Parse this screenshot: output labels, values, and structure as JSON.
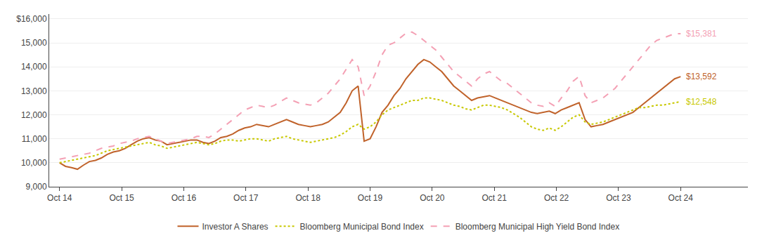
{
  "chart_data": {
    "type": "line",
    "x": [
      0,
      1.1538,
      2.3077,
      3.4615,
      4.6154,
      5.7692,
      6.9231,
      8.0769,
      9.2308,
      10.3846,
      11.5385,
      12.6923,
      13.8462,
      15,
      16.1538,
      17.3077,
      18.4615,
      19.6154,
      20.7692,
      21.9231,
      23.0769,
      24.2308,
      25.3846,
      26.5385,
      27.6923,
      28.8462,
      30,
      31.1538,
      32.3077,
      33.4615,
      34.6154,
      35.7692,
      36.9231,
      38.0769,
      39.2308,
      40.3846,
      41.5385,
      42.6923,
      43.8462,
      45,
      46.1538,
      47.3077,
      48.4615,
      49.6154,
      50.7692,
      51.9231,
      53.0769,
      54.2308,
      55.3846,
      56.5385,
      57.6923,
      58.8462,
      60,
      61.1538,
      62.3077,
      63.4615,
      64.6154,
      65.7692,
      66.9231,
      68.0769,
      69.2308,
      70.3846,
      71.5385,
      72.6923,
      73.8462,
      75,
      76.1538,
      77.3077,
      78.4615,
      79.6154,
      80.7692,
      81.9231,
      83.0769,
      84.2308,
      85.3846,
      86.5385,
      87.6923,
      88.8462,
      90,
      91.1538,
      92.3077,
      93.4615,
      94.6154,
      95.7692,
      96.9231,
      98.0769,
      99.2308,
      100.3846,
      101.5385,
      102.6923,
      103.8462,
      105,
      106.1538,
      107.3077,
      108.4615,
      109.6154,
      110.7692,
      111.9231,
      113.0769,
      114.2308,
      115.3846,
      116.5385,
      117.6923,
      118.8462,
      120
    ],
    "xlim": [
      -2,
      133
    ],
    "xticks": [
      {
        "value": 0,
        "label": "Oct 14"
      },
      {
        "value": 12,
        "label": "Oct 15"
      },
      {
        "value": 24,
        "label": "Oct 16"
      },
      {
        "value": 36,
        "label": "Oct 17"
      },
      {
        "value": 48,
        "label": "Oct 18"
      },
      {
        "value": 60,
        "label": "Oct 19"
      },
      {
        "value": 72,
        "label": "Oct 20"
      },
      {
        "value": 84,
        "label": "Oct 21"
      },
      {
        "value": 96,
        "label": "Oct 22"
      },
      {
        "value": 108,
        "label": "Oct 23"
      },
      {
        "value": 120,
        "label": "Oct 24"
      }
    ],
    "ylim": [
      9000,
      16200
    ],
    "yticks": [
      {
        "value": 9000,
        "label": "9,000"
      },
      {
        "value": 10000,
        "label": "10,000"
      },
      {
        "value": 11000,
        "label": "11,000"
      },
      {
        "value": 12000,
        "label": "12,000"
      },
      {
        "value": 13000,
        "label": "13,000"
      },
      {
        "value": 14000,
        "label": "14,000"
      },
      {
        "value": 15000,
        "label": "15,000"
      },
      {
        "value": 16000,
        "label": "$16,000"
      }
    ],
    "grid": "y",
    "legend": "bottom",
    "series": [
      {
        "name": "Investor A Shares",
        "color": "#C0622A",
        "line_style": "solid",
        "end_label": "$13,592",
        "values": [
          10000,
          9850,
          9800,
          9730,
          9900,
          10050,
          10100,
          10200,
          10350,
          10450,
          10500,
          10600,
          10750,
          10900,
          11000,
          11050,
          10950,
          10900,
          10750,
          10800,
          10850,
          10900,
          10950,
          10950,
          10850,
          10800,
          10900,
          11050,
          11100,
          11200,
          11350,
          11450,
          11500,
          11600,
          11550,
          11500,
          11600,
          11700,
          11800,
          11700,
          11600,
          11550,
          11500,
          11550,
          11600,
          11700,
          11900,
          12100,
          12500,
          13000,
          13200,
          10900,
          11000,
          11500,
          12100,
          12400,
          12800,
          13100,
          13500,
          13800,
          14100,
          14300,
          14200,
          14000,
          13800,
          13500,
          13200,
          13000,
          12800,
          12600,
          12700,
          12750,
          12800,
          12700,
          12600,
          12500,
          12400,
          12300,
          12200,
          12100,
          12050,
          12100,
          12150,
          12050,
          12200,
          12300,
          12400,
          12500,
          11800,
          11500,
          11550,
          11600,
          11700,
          11800,
          11900,
          12000,
          12100,
          12300,
          12500,
          12700,
          12900,
          13100,
          13300,
          13500,
          13592
        ]
      },
      {
        "name": "Bloomberg Municipal Bond Index",
        "color": "#C8C800",
        "line_style": "dotted",
        "end_label": "$12,548",
        "values": [
          10000,
          10050,
          10100,
          10150,
          10200,
          10250,
          10300,
          10400,
          10500,
          10550,
          10600,
          10650,
          10700,
          10750,
          10800,
          10850,
          10750,
          10700,
          10600,
          10650,
          10700,
          10750,
          10800,
          10850,
          10800,
          10750,
          10800,
          10900,
          10950,
          10950,
          10900,
          10950,
          11000,
          11000,
          10950,
          10900,
          11000,
          11050,
          11100,
          11000,
          10950,
          10900,
          10850,
          10900,
          10950,
          11000,
          11050,
          11150,
          11300,
          11500,
          11600,
          11400,
          11500,
          11700,
          12000,
          12200,
          12300,
          12400,
          12500,
          12600,
          12600,
          12700,
          12700,
          12650,
          12600,
          12500,
          12400,
          12350,
          12250,
          12200,
          12300,
          12400,
          12400,
          12350,
          12300,
          12200,
          12050,
          11900,
          11700,
          11500,
          11400,
          11350,
          11450,
          11350,
          11500,
          11700,
          11900,
          12000,
          11700,
          11600,
          11650,
          11700,
          11800,
          11900,
          12000,
          12100,
          12200,
          12300,
          12300,
          12350,
          12400,
          12400,
          12450,
          12500,
          12548
        ]
      },
      {
        "name": "Bloomberg Municipal High Yield Bond Index",
        "color": "#F4A0B4",
        "line_style": "dashed",
        "end_label": "$15,381",
        "values": [
          10150,
          10200,
          10250,
          10300,
          10350,
          10400,
          10500,
          10600,
          10650,
          10700,
          10800,
          10850,
          10900,
          11000,
          11050,
          11100,
          11000,
          10900,
          10800,
          10850,
          10900,
          10950,
          11000,
          11100,
          11100,
          11050,
          11200,
          11400,
          11600,
          11800,
          12000,
          12200,
          12300,
          12400,
          12350,
          12300,
          12400,
          12550,
          12700,
          12600,
          12500,
          12450,
          12400,
          12500,
          12700,
          12900,
          13200,
          13500,
          13900,
          14300,
          14000,
          12800,
          13200,
          13800,
          14500,
          14900,
          15000,
          15200,
          15400,
          15450,
          15300,
          15100,
          14900,
          14700,
          14400,
          14100,
          13800,
          13600,
          13400,
          13200,
          13500,
          13700,
          13800,
          13600,
          13400,
          13300,
          13100,
          12900,
          12700,
          12500,
          12400,
          12350,
          12500,
          12350,
          12700,
          13000,
          13400,
          13600,
          12800,
          12500,
          12600,
          12700,
          12900,
          13100,
          13400,
          13700,
          14000,
          14300,
          14600,
          14900,
          15100,
          15200,
          15300,
          15381,
          15381
        ]
      }
    ]
  }
}
